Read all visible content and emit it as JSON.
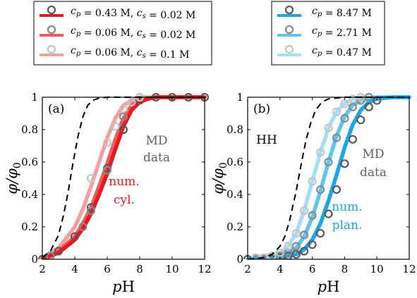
{
  "chart_data": [
    {
      "type": "line",
      "panel_label": "(a)",
      "xlabel": "pH",
      "ylabel": "φ/φ0",
      "xlim": [
        2,
        12
      ],
      "ylim": [
        0,
        1
      ],
      "xticks": [
        "2",
        "4",
        "6",
        "8",
        "10",
        "12"
      ],
      "yticks": [
        "0",
        "0.2",
        "0.4",
        "0.6",
        "0.8",
        "1"
      ],
      "legend": [
        {
          "label": "c_p = 0.43 M, c_s = 0.02 M",
          "color": "#e8181d"
        },
        {
          "label": "c_p = 0.06 M, c_s = 0.02 M",
          "color": "#ee5a5e"
        },
        {
          "label": "c_p = 0.06 M, c_s = 0.1 M",
          "color": "#f5a0a0"
        }
      ],
      "annotations": [
        {
          "text": [
            "MD",
            "data"
          ],
          "color": "#606060"
        },
        {
          "text": [
            "num.",
            "cyl."
          ],
          "color": "#e8181d"
        }
      ],
      "series": [
        {
          "style": "dashed",
          "color": "#000000",
          "x": [
            2,
            2.5,
            3,
            3.3,
            3.6,
            3.9,
            4.2,
            4.5,
            4.8,
            5.1,
            5.5,
            6,
            7,
            12
          ],
          "y": [
            0.01,
            0.05,
            0.15,
            0.27,
            0.42,
            0.6,
            0.76,
            0.88,
            0.95,
            0.98,
            0.995,
            1,
            1,
            1
          ]
        },
        {
          "style": "line",
          "color": "#e8181d",
          "x": [
            2,
            3,
            4,
            4.5,
            5,
            5.5,
            6,
            6.5,
            7,
            7.5,
            8,
            8.5,
            9,
            10,
            12
          ],
          "y": [
            0,
            0.04,
            0.12,
            0.19,
            0.28,
            0.4,
            0.53,
            0.68,
            0.82,
            0.92,
            0.97,
            0.99,
            1,
            1,
            1
          ]
        },
        {
          "style": "line",
          "color": "#ee5a5e",
          "x": [
            2,
            3,
            4,
            4.5,
            5,
            5.5,
            6,
            6.5,
            7,
            7.5,
            8,
            8.5,
            9,
            10,
            12
          ],
          "y": [
            0,
            0.05,
            0.14,
            0.22,
            0.32,
            0.45,
            0.59,
            0.74,
            0.87,
            0.95,
            0.98,
            0.99,
            1,
            1,
            1
          ]
        },
        {
          "style": "line",
          "color": "#f5a0a0",
          "x": [
            2,
            3,
            4,
            4.5,
            5,
            5.5,
            6,
            6.5,
            7,
            7.5,
            8,
            9,
            10,
            12
          ],
          "y": [
            0.01,
            0.07,
            0.2,
            0.31,
            0.45,
            0.6,
            0.75,
            0.87,
            0.95,
            0.98,
            1,
            1,
            1,
            1
          ]
        },
        {
          "style": "markers",
          "color": "#595959",
          "x": [
            2,
            3,
            4,
            5,
            6,
            7,
            8,
            9,
            10,
            11,
            12
          ],
          "y": [
            0,
            0.05,
            0.14,
            0.32,
            0.56,
            0.8,
            0.98,
            1,
            1,
            1,
            1
          ]
        },
        {
          "style": "markers",
          "color": "#8a8a8a",
          "x": [
            2.5,
            4.5,
            5,
            6,
            7,
            8
          ],
          "y": [
            0.02,
            0.2,
            0.3,
            0.55,
            0.88,
            1
          ]
        },
        {
          "style": "markers",
          "color": "#c4c4c4",
          "x": [
            5,
            6,
            6.5,
            7,
            7.5,
            8
          ],
          "y": [
            0.5,
            0.72,
            0.82,
            0.93,
            0.97,
            1
          ]
        }
      ]
    },
    {
      "type": "line",
      "panel_label": "(b)",
      "xlabel": "pH",
      "ylabel": "φ/φ0",
      "xlim": [
        2,
        12
      ],
      "ylim": [
        0,
        1
      ],
      "xticks": [
        "2",
        "4",
        "6",
        "8",
        "10",
        "12"
      ],
      "yticks": [
        "0",
        "0.2",
        "0.4",
        "0.6",
        "0.8",
        "1"
      ],
      "legend": [
        {
          "label": "c_p = 8.47 M",
          "color": "#1aa6e8"
        },
        {
          "label": "c_p = 2.71 M",
          "color": "#5cc6ee"
        },
        {
          "label": "c_p = 0.47 M",
          "color": "#a6dff5"
        }
      ],
      "annotations": [
        {
          "text": [
            "HH"
          ],
          "color": "#000000"
        },
        {
          "text": [
            "MD",
            "data"
          ],
          "color": "#606060"
        },
        {
          "text": [
            "num.",
            "plan."
          ],
          "color": "#1aa6e8"
        }
      ],
      "series": [
        {
          "style": "dashed",
          "color": "#000000",
          "x": [
            2,
            3,
            3.5,
            4,
            4.3,
            4.6,
            5,
            5.3,
            5.6,
            5.9,
            6.2,
            6.6,
            7,
            8,
            12
          ],
          "y": [
            0,
            0.01,
            0.03,
            0.08,
            0.14,
            0.24,
            0.42,
            0.58,
            0.73,
            0.84,
            0.92,
            0.97,
            0.99,
            1,
            1
          ]
        },
        {
          "style": "line",
          "color": "#1aa6e8",
          "x": [
            2,
            4,
            5,
            5.5,
            6,
            6.5,
            7,
            7.5,
            8,
            8.5,
            9,
            9.5,
            10,
            11,
            12
          ],
          "y": [
            0,
            0.01,
            0.03,
            0.06,
            0.12,
            0.22,
            0.36,
            0.52,
            0.69,
            0.83,
            0.92,
            0.97,
            0.99,
            1,
            1
          ]
        },
        {
          "style": "line",
          "color": "#5cc6ee",
          "x": [
            2,
            4,
            5,
            5.5,
            6,
            6.5,
            7,
            7.5,
            8,
            8.5,
            9,
            9.5,
            10,
            12
          ],
          "y": [
            0,
            0.02,
            0.07,
            0.14,
            0.26,
            0.42,
            0.6,
            0.76,
            0.88,
            0.95,
            0.98,
            0.99,
            1,
            1
          ]
        },
        {
          "style": "line",
          "color": "#a6dff5",
          "x": [
            2,
            4,
            4.5,
            5,
            5.5,
            6,
            6.5,
            7,
            7.5,
            8,
            8.5,
            9,
            10,
            12
          ],
          "y": [
            0,
            0.04,
            0.08,
            0.16,
            0.3,
            0.48,
            0.66,
            0.81,
            0.91,
            0.96,
            0.99,
            1,
            1,
            1
          ]
        },
        {
          "style": "markers",
          "color": "#595959",
          "x": [
            2,
            2.5,
            3,
            3.5,
            4,
            4.5,
            5,
            5.5,
            6,
            6.5,
            7,
            7.5,
            8,
            8.5,
            9,
            9.5,
            10
          ],
          "y": [
            0,
            0,
            0,
            0,
            0.01,
            0.02,
            0.03,
            0.05,
            0.09,
            0.16,
            0.28,
            0.43,
            0.59,
            0.74,
            0.86,
            0.94,
            0.98
          ]
        },
        {
          "style": "markers",
          "color": "#8a8a8a",
          "x": [
            2.5,
            3,
            3.5,
            4,
            4.5,
            5,
            5.5,
            6,
            6.5,
            7,
            7.5,
            8,
            8.5,
            9,
            9.5
          ],
          "y": [
            0,
            0,
            0.01,
            0.02,
            0.04,
            0.08,
            0.15,
            0.27,
            0.43,
            0.6,
            0.75,
            0.87,
            0.94,
            0.98,
            1
          ]
        },
        {
          "style": "markers",
          "color": "#c4c4c4",
          "x": [
            2.5,
            3,
            3.5,
            4,
            4.5,
            5,
            5.5,
            6,
            6.5,
            7,
            7.5,
            8,
            8.5,
            9
          ],
          "y": [
            0.01,
            0.01,
            0.02,
            0.04,
            0.08,
            0.16,
            0.3,
            0.48,
            0.66,
            0.81,
            0.91,
            0.96,
            0.99,
            1
          ]
        }
      ]
    }
  ]
}
